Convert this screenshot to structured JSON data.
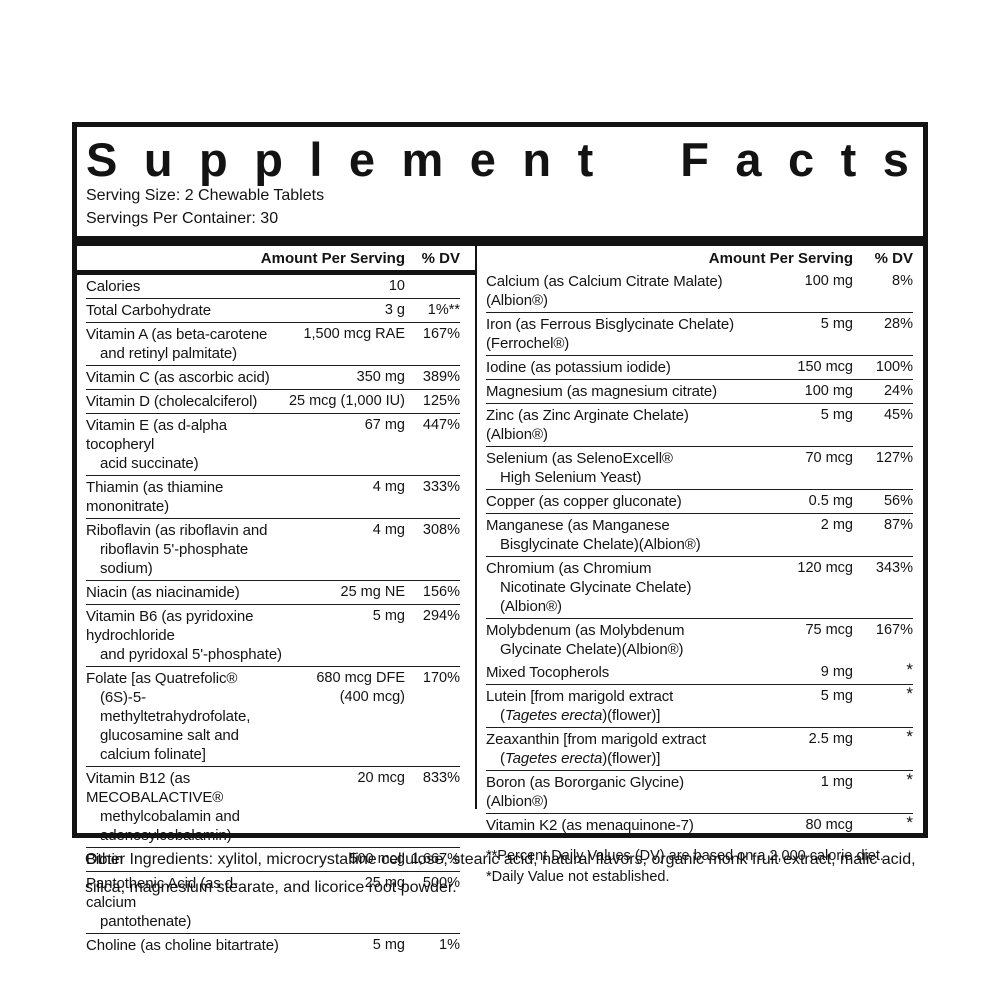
{
  "title": "Supplement Facts",
  "serving": {
    "size_label": "Serving Size: 2 Chewable Tablets",
    "per_container_label": "Servings Per Container: 30"
  },
  "columns": {
    "amount_header": "Amount Per Serving",
    "dv_header": "% DV"
  },
  "left_rows": [
    {
      "name": [
        "Calories"
      ],
      "amount": "10",
      "dv": ""
    },
    {
      "name": [
        "Total Carbohydrate"
      ],
      "amount": "3 g",
      "dv": "1%**"
    },
    {
      "name": [
        "Vitamin A (as beta-carotene",
        "and retinyl palmitate)"
      ],
      "amount": "1,500 mcg RAE",
      "dv": "167%"
    },
    {
      "name": [
        "Vitamin C (as ascorbic acid)"
      ],
      "amount": "350 mg",
      "dv": "389%"
    },
    {
      "name": [
        "Vitamin D (cholecalciferol)"
      ],
      "amount": "25 mcg (1,000 IU)",
      "dv": "125%"
    },
    {
      "name": [
        "Vitamin E (as d-alpha tocopheryl",
        "acid succinate)"
      ],
      "amount": "67 mg",
      "dv": "447%"
    },
    {
      "name": [
        "Thiamin (as thiamine mononitrate)"
      ],
      "amount": "4 mg",
      "dv": "333%"
    },
    {
      "name": [
        "Riboflavin (as riboflavin and",
        "riboflavin 5'-phosphate sodium)"
      ],
      "amount": "4 mg",
      "dv": "308%"
    },
    {
      "name": [
        "Niacin (as niacinamide)"
      ],
      "amount": "25 mg NE",
      "dv": "156%"
    },
    {
      "name": [
        "Vitamin B6 (as pyridoxine hydrochloride",
        "and pyridoxal 5'-phosphate)"
      ],
      "amount": "5 mg",
      "dv": "294%"
    },
    {
      "name": [
        "Folate [as Quatrefolic®",
        "(6S)-5-methyltetrahydrofolate,",
        "glucosamine salt and calcium folinate]"
      ],
      "amount": "680 mcg DFE",
      "amount2": "(400 mcg)",
      "dv": "170%"
    },
    {
      "name": [
        "Vitamin B12 (as MECOBALACTIVE®",
        "methylcobalamin and",
        "adenosylcobalamin)"
      ],
      "amount": "20 mcg",
      "dv": "833%"
    },
    {
      "name": [
        "Biotin"
      ],
      "amount": "500 mcg",
      "dv": "1,667%"
    },
    {
      "name": [
        "Pantothenic Acid (as d-calcium",
        "pantothenate)"
      ],
      "amount": "25 mg",
      "dv": "500%"
    },
    {
      "name": [
        "Choline (as choline bitartrate)"
      ],
      "amount": "5 mg",
      "dv": "1%"
    }
  ],
  "right_rows_main": [
    {
      "name": [
        "Calcium (as Calcium Citrate Malate)(Albion®)"
      ],
      "amount": "100 mg",
      "dv": "8%"
    },
    {
      "name": [
        "Iron (as Ferrous Bisglycinate Chelate)(Ferrochel®)"
      ],
      "amount": "5 mg",
      "dv": "28%"
    },
    {
      "name": [
        "Iodine (as potassium iodide)"
      ],
      "amount": "150 mcg",
      "dv": "100%"
    },
    {
      "name": [
        "Magnesium (as magnesium citrate)"
      ],
      "amount": "100 mg",
      "dv": "24%"
    },
    {
      "name": [
        "Zinc (as Zinc Arginate Chelate)(Albion®)"
      ],
      "amount": "5 mg",
      "dv": "45%"
    },
    {
      "name": [
        "Selenium (as SelenoExcell®",
        "High Selenium Yeast)"
      ],
      "amount": "70 mcg",
      "dv": "127%"
    },
    {
      "name": [
        "Copper (as copper gluconate)"
      ],
      "amount": "0.5 mg",
      "dv": "56%"
    },
    {
      "name": [
        "Manganese (as Manganese",
        "Bisglycinate Chelate)(Albion®)"
      ],
      "amount": "2 mg",
      "dv": "87%"
    },
    {
      "name": [
        "Chromium (as Chromium",
        "Nicotinate Glycinate Chelate)(Albion®)"
      ],
      "amount": "120 mcg",
      "dv": "343%"
    },
    {
      "name": [
        "Molybdenum (as Molybdenum",
        "Glycinate Chelate)(Albion®)"
      ],
      "amount": "75 mcg",
      "dv": "167%"
    }
  ],
  "right_rows_other": [
    {
      "name": [
        "Mixed Tocopherols"
      ],
      "amount": "9 mg",
      "dv": "*"
    },
    {
      "name": [
        "Lutein [from marigold extract",
        [
          {
            "t": "(",
            "i": 0
          },
          {
            "t": "Tagetes erecta",
            "i": 1
          },
          {
            "t": ")(flower)]",
            "i": 0
          }
        ]
      ],
      "amount": "5 mg",
      "dv": "*"
    },
    {
      "name": [
        "Zeaxanthin [from marigold extract",
        [
          {
            "t": "(",
            "i": 0
          },
          {
            "t": "Tagetes erecta",
            "i": 1
          },
          {
            "t": ")(flower)]",
            "i": 0
          }
        ]
      ],
      "amount": "2.5 mg",
      "dv": "*"
    },
    {
      "name": [
        "Boron (as Bororganic Glycine)(Albion®)"
      ],
      "amount": "1 mg",
      "dv": "*"
    },
    {
      "name": [
        "Vitamin K2 (as menaquinone-7)"
      ],
      "amount": "80 mcg",
      "dv": "*"
    }
  ],
  "footnotes": [
    "**Percent Daily Values (DV) are based on a 2,000 calorie diet.",
    "*Daily Value not established."
  ],
  "other_ingredients": "Other Ingredients: xylitol, microcrystalline cellulose, stearic acid, natural flavors, organic monk fruit extract, malic acid, silica, magnesium stearate, and licorice root powder."
}
